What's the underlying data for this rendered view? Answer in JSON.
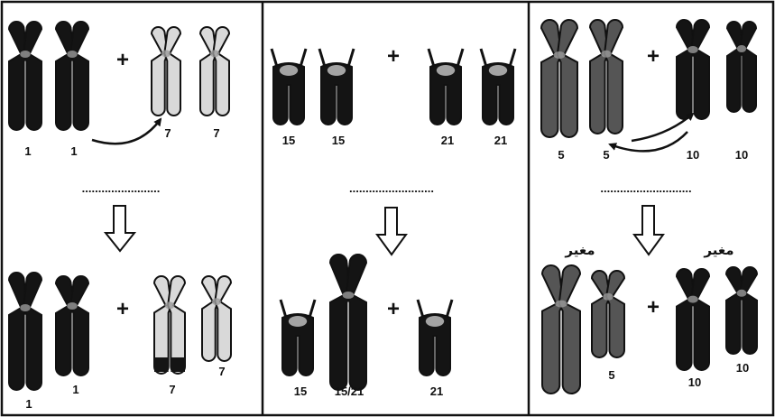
{
  "colors": {
    "black_chromosome": "#141414",
    "pale_chromosome": "#d9d9d9",
    "grey_chromosome": "#555555",
    "outline": "#111111",
    "background": "#ffffff"
  },
  "panels": [
    {
      "name": "reciprocal-translocation",
      "before": {
        "chromosomes": [
          {
            "label": "1",
            "fill": "black"
          },
          {
            "label": "1",
            "fill": "black"
          },
          {
            "label": "7",
            "fill": "pale"
          },
          {
            "label": "7",
            "fill": "pale"
          }
        ],
        "plus": "+"
      },
      "dots": "........................",
      "after": {
        "chromosomes": [
          {
            "label": "1",
            "fill": "black"
          },
          {
            "label": "1",
            "fill": "black"
          },
          {
            "label": "7",
            "fill": "pale"
          },
          {
            "label": "7",
            "fill": "pale"
          }
        ],
        "plus": "+"
      }
    },
    {
      "name": "robertsonian-fusion",
      "before": {
        "chromosomes": [
          {
            "label": "15",
            "fill": "black"
          },
          {
            "label": "15",
            "fill": "black"
          },
          {
            "label": "21",
            "fill": "black"
          },
          {
            "label": "21",
            "fill": "black"
          }
        ],
        "plus": "+"
      },
      "dots": "..........................",
      "after": {
        "chromosomes": [
          {
            "label": "15",
            "fill": "black"
          },
          {
            "label": "15/21",
            "fill": "black"
          },
          {
            "label": "21",
            "fill": "black"
          }
        ],
        "plus": "+"
      }
    },
    {
      "name": "mutual-exchange",
      "before": {
        "chromosomes": [
          {
            "label": "5",
            "fill": "grey"
          },
          {
            "label": "5",
            "fill": "grey"
          },
          {
            "label": "10",
            "fill": "black"
          },
          {
            "label": "10",
            "fill": "black"
          }
        ],
        "plus": "+"
      },
      "dots": "............................",
      "after": {
        "chromosomes": [
          {
            "label": "",
            "fill": "grey"
          },
          {
            "label": "5",
            "fill": "grey"
          },
          {
            "label": "10",
            "fill": "black"
          },
          {
            "label": "10",
            "fill": "black"
          }
        ],
        "plus": "+",
        "changed_labels": [
          "مغير",
          "مغير"
        ]
      }
    }
  ]
}
